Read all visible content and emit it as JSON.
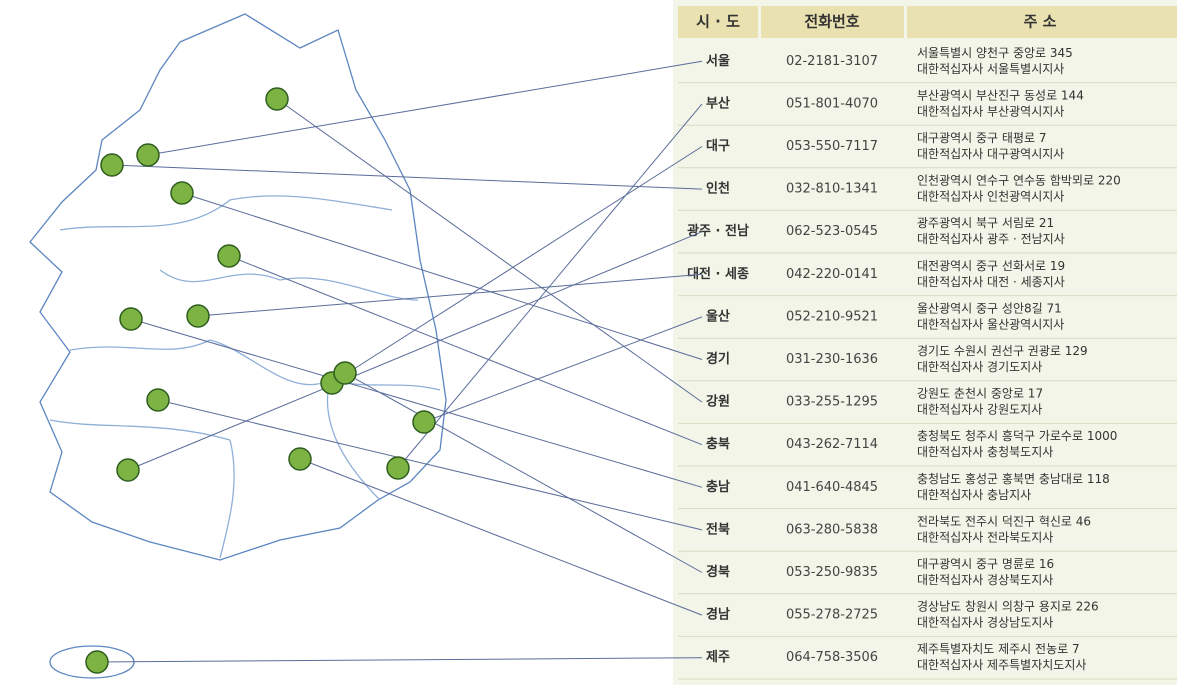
{
  "table": {
    "headers": [
      "시 · 도",
      "전화번호",
      "주 소"
    ],
    "rows": [
      [
        "서울",
        "02-2181-3107",
        "서울특별시 양천구 중앙로 345",
        "대한적십자사 서울특별시지사"
      ],
      [
        "부산",
        "051-801-4070",
        "부산광역시 부산진구 동성로 144",
        "대한적십자사 부산광역시지사"
      ],
      [
        "대구",
        "053-550-7117",
        "대구광역시 중구 태평로 7",
        "대한적십자사 대구광역시지사"
      ],
      [
        "인천",
        "032-810-1341",
        "인천광역시 연수구 연수동 함박뫼로 220",
        "대한적십자사 인천광역시지사"
      ],
      [
        "광주 · 전남",
        "062-523-0545",
        "광주광역시 북구 서림로 21",
        "대한적십자사 광주 · 전남지사"
      ],
      [
        "대전 · 세종",
        "042-220-0141",
        "대전광역시 중구 선화서로 19",
        "대한적십자사 대전 · 세종지사"
      ],
      [
        "울산",
        "052-210-9521",
        "울산광역시 중구 성안8길 71",
        "대한적십자사 울산광역시지사"
      ],
      [
        "경기",
        "031-230-1636",
        "경기도 수원시 권선구 권광로 129",
        "대한적십자사 경기도지사"
      ],
      [
        "강원",
        "033-255-1295",
        "강원도 춘천시 중앙로 17",
        "대한적십자사 강원도지사"
      ],
      [
        "충북",
        "043-262-7114",
        "충청북도 청주시 흥덕구 가로수로 1000",
        "대한적십자사 충청북도지사"
      ],
      [
        "충남",
        "041-640-4845",
        "충청남도 홍성군 홍북면 충남대로 118",
        "대한적십자사 충남지사"
      ],
      [
        "전북",
        "063-280-5838",
        "전라북도 전주시 덕진구 혁신로 46",
        "대한적십자사 전라북도지사"
      ],
      [
        "경북",
        "053-250-9835",
        "대구광역시 중구 명륜로 16",
        "대한적십자사 경상북도지사"
      ],
      [
        "경남",
        "055-278-2725",
        "경상남도 창원시 의창구 용지로 226",
        "대한적십자사 경상남도지사"
      ],
      [
        "제주",
        "064-758-3506",
        "제주특별자치도 제주시 전농로 7",
        "대한적십자사 제주특별자치도지사"
      ]
    ]
  }
}
